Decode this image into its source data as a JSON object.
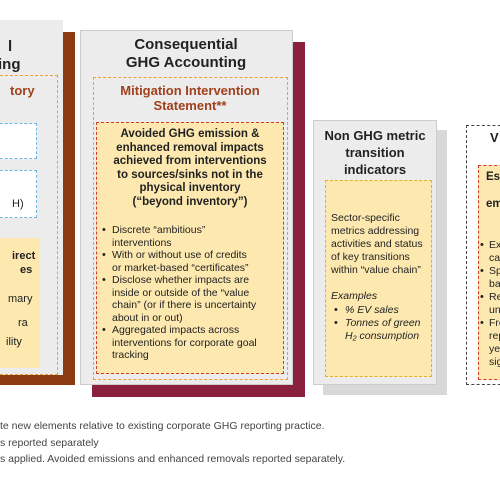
{
  "left_panel": {
    "title_lines": [
      "l",
      "ing"
    ],
    "section_title": "tory",
    "box_text": "H)",
    "yellow_lines_bold": [
      "irect",
      "es"
    ],
    "yellow_lines": [
      "mary",
      "ra",
      "ility"
    ]
  },
  "consequential_panel": {
    "title_lines": [
      "Consequential",
      "GHG Accounting"
    ],
    "section_title_lines": [
      "Mitigation Intervention",
      "Statement**"
    ],
    "heading_lines": [
      "Avoided GHG emission &",
      "enhanced removal impacts",
      "achieved from interventions",
      "to sources/sinks not in the",
      "physical inventory",
      "(“beyond inventory”)"
    ],
    "bullets": [
      [
        "Discrete “ambitious”",
        "interventions"
      ],
      [
        "With or without use of credits",
        "or market-based “certificates”"
      ],
      [
        "Disclose whether impacts are",
        "inside or outside of the “value",
        "chain” (or if there is uncertainty",
        "about in or out)"
      ],
      [
        "Aggregated impacts across",
        "interventions for corporate goal",
        "tracking"
      ]
    ]
  },
  "non_ghg_panel": {
    "title_lines": [
      "Non GHG metric",
      "transition",
      "indicators"
    ],
    "body_lines": [
      "Sector-specific",
      "metrics addressing",
      "activities and status",
      "of key transitions",
      "within “value chain”"
    ],
    "examples_label": "Examples",
    "examples": [
      [
        "% EV sales"
      ],
      [
        "Tonnes of green",
        "H₂ consumption"
      ]
    ]
  },
  "right_panel": {
    "title": "V",
    "heading_lines": [
      "Est",
      "em"
    ],
    "bullets": [
      [
        "Ex",
        "cat"
      ],
      [
        "Sp",
        "ba"
      ],
      [
        "Re",
        "un"
      ],
      [
        "Fre",
        "rep",
        "ye",
        "sig"
      ]
    ]
  },
  "footnotes": [
    "te new elements relative to existing corporate GHG reporting practice.",
    "s reported separately",
    "s applied. Avoided emissions and enhanced removals reported separately."
  ]
}
